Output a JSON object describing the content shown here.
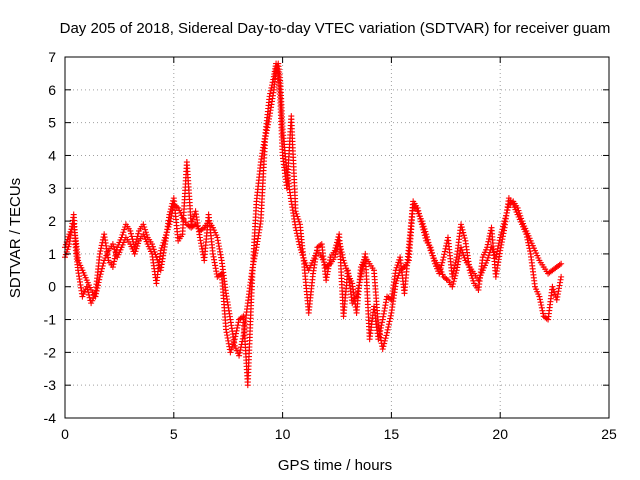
{
  "chart_data": {
    "type": "scatter",
    "title": "Day 205 of 2018, Sidereal Day-to-day VTEC variation (SDTVAR) for receiver guam",
    "xlabel": "GPS time / hours",
    "ylabel": "SDTVAR / TECUs",
    "xlim": [
      0,
      25
    ],
    "ylim": [
      -4,
      7
    ],
    "x_ticks": [
      0,
      5,
      10,
      15,
      20,
      25
    ],
    "y_ticks": [
      -4,
      -3,
      -2,
      -1,
      0,
      1,
      2,
      3,
      4,
      5,
      6,
      7
    ],
    "x_tick_labels": [
      "0",
      "5",
      "10",
      "15",
      "20",
      "25"
    ],
    "y_tick_labels": [
      "-4",
      "-3",
      "-2",
      "-1",
      "0",
      "1",
      "2",
      "3",
      "4",
      "5",
      "6",
      "7"
    ],
    "grid": true,
    "marker": "+",
    "color": "#ff0000",
    "series": [
      {
        "name": "SDTVAR",
        "x": [
          0.0,
          0.2,
          0.4,
          0.5,
          0.6,
          0.8,
          1.0,
          1.2,
          1.4,
          1.6,
          1.8,
          2.0,
          2.2,
          2.4,
          2.6,
          2.8,
          3.0,
          3.2,
          3.4,
          3.6,
          3.8,
          4.0,
          4.2,
          4.4,
          4.6,
          4.8,
          5.0,
          5.2,
          5.4,
          5.6,
          5.8,
          6.0,
          6.2,
          6.4,
          6.6,
          6.8,
          7.0,
          7.2,
          7.4,
          7.6,
          7.8,
          8.0,
          8.2,
          8.4,
          8.6,
          8.8,
          9.0,
          9.2,
          9.4,
          9.6,
          9.7,
          9.8,
          9.9,
          10.0,
          10.2,
          10.4,
          10.6,
          10.8,
          11.0,
          11.2,
          11.4,
          11.6,
          11.8,
          12.0,
          12.2,
          12.4,
          12.6,
          12.8,
          13.0,
          13.2,
          13.4,
          13.6,
          13.8,
          14.0,
          14.2,
          14.4,
          14.6,
          14.8,
          15.0,
          15.2,
          15.4,
          15.6,
          15.8,
          16.0,
          16.2,
          16.4,
          16.6,
          16.8,
          17.0,
          17.2,
          17.4,
          17.6,
          17.8,
          18.0,
          18.2,
          18.4,
          18.6,
          18.8,
          19.0,
          19.2,
          19.4,
          19.6,
          19.8,
          20.0,
          20.2,
          20.4,
          20.6,
          20.8,
          21.0,
          21.2,
          21.4,
          21.6,
          21.8,
          22.0,
          22.2,
          22.4,
          22.6,
          22.8
        ],
        "y": [
          1.2,
          1.6,
          1.9,
          1.4,
          0.8,
          0.5,
          0.2,
          -0.1,
          -0.3,
          0.3,
          0.8,
          1.1,
          1.3,
          0.9,
          1.2,
          1.5,
          1.3,
          1.0,
          1.4,
          1.6,
          1.3,
          1.0,
          0.1,
          1.1,
          1.5,
          1.9,
          2.5,
          2.4,
          2.1,
          1.9,
          1.8,
          1.9,
          1.7,
          1.8,
          2.0,
          1.8,
          1.5,
          0.8,
          -0.2,
          -1.0,
          -1.8,
          -2.1,
          -1.5,
          -0.5,
          0.5,
          1.2,
          2.0,
          4.5,
          5.2,
          6.0,
          6.6,
          6.8,
          6.2,
          4.8,
          3.5,
          2.6,
          1.8,
          1.2,
          0.8,
          0.5,
          0.8,
          1.1,
          0.9,
          0.6,
          0.7,
          0.9,
          1.4,
          0.8,
          0.4,
          0.1,
          -0.8,
          0.6,
          0.9,
          0.7,
          0.5,
          -1.2,
          -1.9,
          -1.4,
          -0.8,
          0.1,
          0.5,
          0.6,
          0.8,
          2.5,
          2.3,
          2.0,
          1.6,
          1.1,
          0.8,
          0.6,
          0.3,
          0.2,
          0.0,
          0.5,
          1.2,
          0.8,
          0.6,
          0.4,
          0.2,
          0.5,
          0.8,
          1.2,
          0.9,
          1.5,
          2.0,
          2.5,
          2.6,
          2.4,
          2.0,
          1.7,
          1.4,
          1.1,
          0.8,
          0.6,
          0.4,
          0.5,
          0.6,
          0.7
        ],
        "y_secondary": [
          0.9,
          1.3,
          2.2,
          1.1,
          0.5,
          -0.3,
          0.0,
          -0.5,
          -0.2,
          1.0,
          1.6,
          0.8,
          0.6,
          1.2,
          1.5,
          1.9,
          1.7,
          1.2,
          1.7,
          1.9,
          1.5,
          1.3,
          0.9,
          0.5,
          1.3,
          2.2,
          2.7,
          1.4,
          1.6,
          3.8,
          1.9,
          2.3,
          1.5,
          0.8,
          2.2,
          1.0,
          0.3,
          0.4,
          -1.3,
          -2.0,
          -1.6,
          -1.0,
          -0.9,
          -3.0,
          0.2,
          2.6,
          3.8,
          4.6,
          5.8,
          6.4,
          6.8,
          6.5,
          5.6,
          4.0,
          3.0,
          5.2,
          2.3,
          1.9,
          0.6,
          -0.8,
          0.4,
          1.2,
          1.3,
          0.2,
          0.9,
          1.1,
          1.6,
          -0.9,
          0.5,
          -0.5,
          -0.3,
          0.3,
          1.0,
          -1.6,
          -0.6,
          -1.6,
          -1.0,
          -0.3,
          -0.4,
          0.5,
          0.9,
          -0.2,
          1.2,
          2.6,
          2.4,
          1.9,
          1.4,
          1.2,
          0.7,
          0.4,
          0.9,
          1.5,
          0.3,
          0.9,
          1.9,
          1.4,
          0.5,
          0.1,
          -0.1,
          0.9,
          1.2,
          1.8,
          0.3,
          1.1,
          1.8,
          2.7,
          2.5,
          2.2,
          1.9,
          1.6,
          1.0,
          0.0,
          -0.3,
          -0.9,
          -1.0,
          0.0,
          -0.4,
          0.3
        ]
      }
    ]
  }
}
